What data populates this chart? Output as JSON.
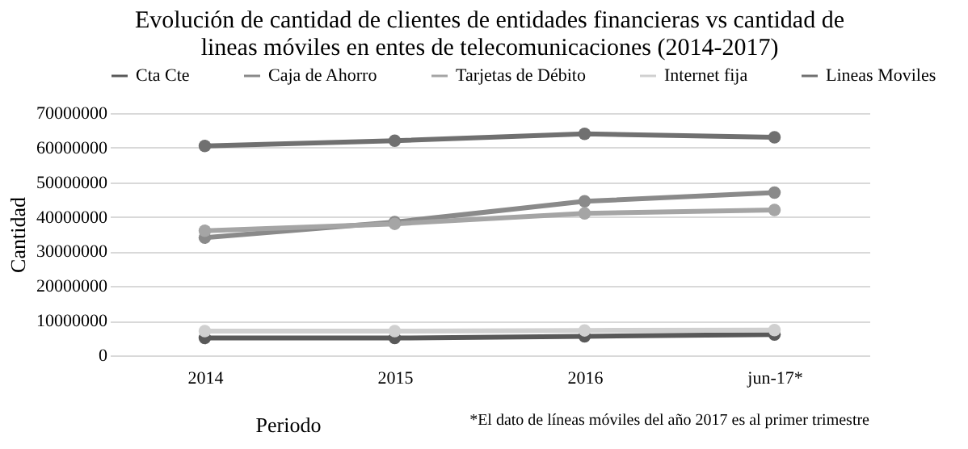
{
  "chart_data": {
    "type": "line",
    "title": [
      "Evolución de cantidad de clientes de entidades financieras vs cantidad de",
      "lineas móviles en entes de telecomunicaciones (2014-2017)"
    ],
    "xlabel": "Periodo",
    "ylabel": "Cantidad",
    "categories": [
      "2014",
      "2015",
      "2016",
      "jun-17*"
    ],
    "series": [
      {
        "name": "Cta Cte",
        "color": "#595959",
        "values": [
          5000000,
          5000000,
          5500000,
          6000000
        ]
      },
      {
        "name": "Caja de Ahorro",
        "color": "#8a8a8a",
        "values": [
          34000000,
          38500000,
          44500000,
          47000000
        ]
      },
      {
        "name": "Tarjetas de Débito",
        "color": "#a5a5a5",
        "values": [
          36000000,
          38000000,
          41000000,
          42000000
        ]
      },
      {
        "name": "Internet fija",
        "color": "#d0d0d0",
        "values": [
          7000000,
          7000000,
          7200000,
          7300000
        ]
      },
      {
        "name": "Lineas Moviles",
        "color": "#707070",
        "values": [
          60500000,
          62000000,
          64000000,
          63000000
        ]
      }
    ],
    "ylim": [
      0,
      70000000
    ],
    "yticks": [
      0,
      10000000,
      20000000,
      30000000,
      40000000,
      50000000,
      60000000,
      70000000
    ],
    "grid": "y",
    "legend": "top",
    "marker": "circle",
    "line_style": "solid",
    "annotations": [
      "*El dato de líneas móviles del año 2017 es al primer trimestre"
    ]
  }
}
